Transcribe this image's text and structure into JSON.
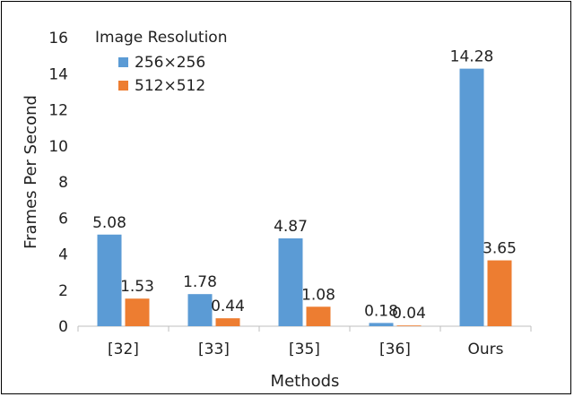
{
  "chart_data": {
    "type": "bar",
    "categories": [
      "[32]",
      "[33]",
      "[35]",
      "[36]",
      "Ours"
    ],
    "series": [
      {
        "name": "256×256",
        "values": [
          5.08,
          1.78,
          4.87,
          0.18,
          14.28
        ],
        "color": "#5B9BD5"
      },
      {
        "name": "512×512",
        "values": [
          1.53,
          0.44,
          1.08,
          0.04,
          3.65
        ],
        "color": "#ED7D31"
      }
    ],
    "data_labels": [
      [
        "5.08",
        "1.78",
        "4.87",
        "0.18",
        "14.28"
      ],
      [
        "1.53",
        "0.44",
        "1.08",
        "0.04",
        "3.65"
      ]
    ],
    "title": "",
    "legend_title": "Image Resolution",
    "legend_position": "top-left",
    "xlabel": "Methods",
    "ylabel": "Frames Per Second",
    "ylim": [
      0,
      16
    ],
    "yticks": [
      "0",
      "2",
      "4",
      "6",
      "8",
      "10",
      "12",
      "14",
      "16"
    ],
    "grid": false
  }
}
